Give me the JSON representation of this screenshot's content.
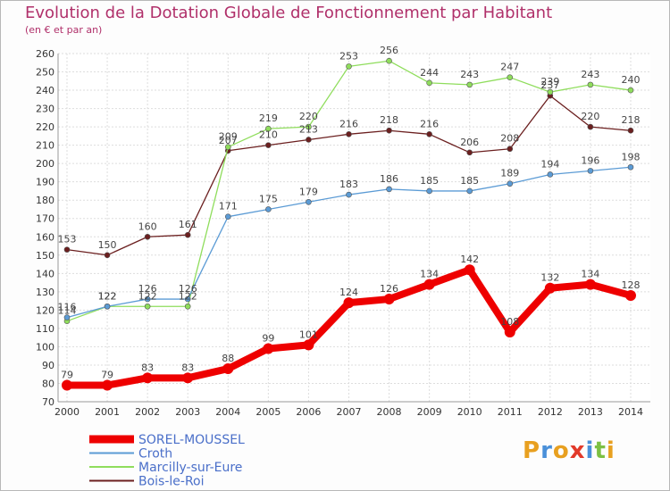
{
  "chart_data": {
    "type": "line",
    "title": "Evolution de la Dotation Globale de Fonctionnement par Habitant",
    "subtitle": "(en € et par an)",
    "x": [
      "2000",
      "2001",
      "2002",
      "2003",
      "2004",
      "2005",
      "2006",
      "2007",
      "2008",
      "2009",
      "2010",
      "2011",
      "2012",
      "2013",
      "2014"
    ],
    "ylim": [
      70,
      260
    ],
    "yticks": [
      70,
      80,
      90,
      100,
      110,
      120,
      130,
      140,
      150,
      160,
      170,
      180,
      190,
      200,
      210,
      220,
      230,
      240,
      250,
      260
    ],
    "grid": true,
    "legend_position": "bottom-left",
    "series": [
      {
        "name": "SOREL-MOUSSEL",
        "color": "#ee0000",
        "values": [
          79,
          79,
          83,
          83,
          88,
          99,
          101,
          124,
          126,
          134,
          142,
          108,
          132,
          134,
          128
        ]
      },
      {
        "name": "Croth",
        "color": "#5b9bd5",
        "values": [
          116,
          122,
          126,
          126,
          171,
          175,
          179,
          183,
          186,
          185,
          185,
          189,
          194,
          196,
          198
        ]
      },
      {
        "name": "Marcilly-sur-Eure",
        "color": "#8fdd5c",
        "values": [
          114,
          122,
          122,
          122,
          209,
          219,
          220,
          253,
          256,
          244,
          243,
          247,
          239,
          243,
          240
        ]
      },
      {
        "name": "Bois-le-Roi",
        "color": "#6b1f1f",
        "values": [
          153,
          150,
          160,
          161,
          207,
          210,
          213,
          216,
          218,
          216,
          206,
          208,
          237,
          220,
          218
        ]
      }
    ]
  },
  "logo": {
    "text": "Proxiti"
  }
}
